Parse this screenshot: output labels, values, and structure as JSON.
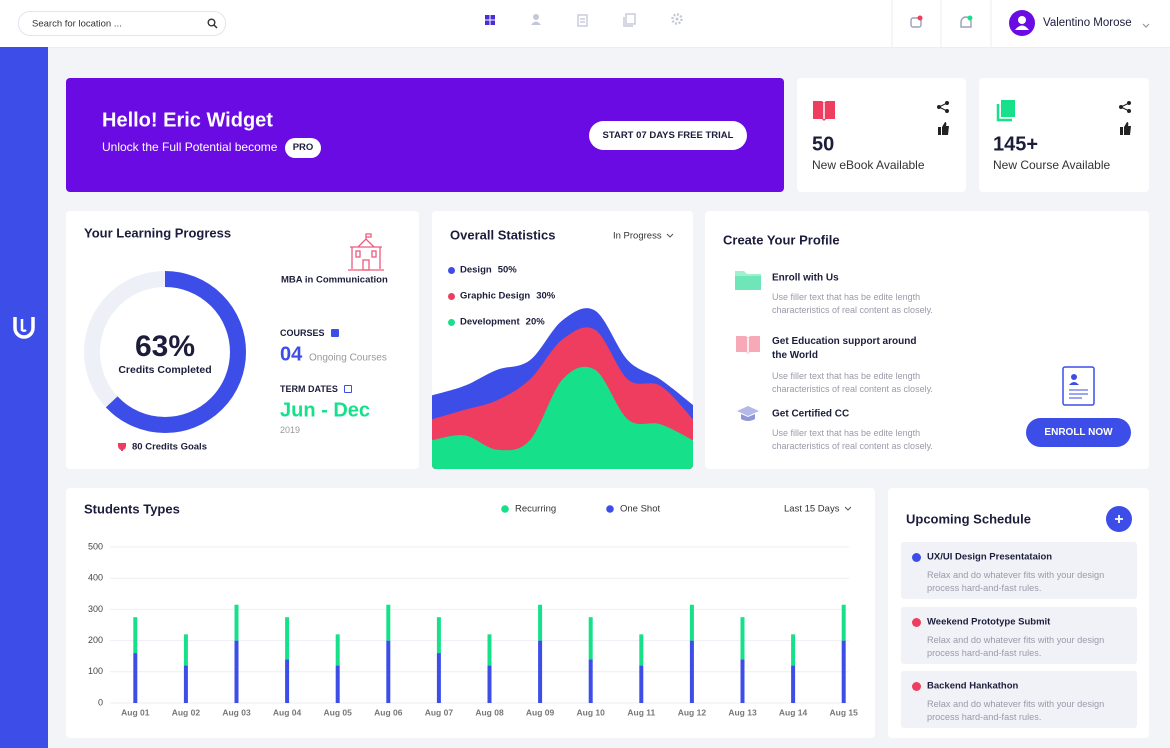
{
  "topbar": {
    "search_placeholder": "Search for location ...",
    "user_name": "Valentino Morose"
  },
  "banner": {
    "title": "Hello! Eric Widget",
    "subtitle": "Unlock the Full Potential become",
    "badge": "PRO",
    "button": "START 07 DAYS FREE TRIAL"
  },
  "stat_cards": [
    {
      "value": "50",
      "label": "New eBook Available"
    },
    {
      "value": "145+",
      "label": "New Course Available"
    }
  ],
  "learning_progress": {
    "title": "Your Learning Progress",
    "program": "MBA in Communication",
    "courses_heading": "COURSES",
    "courses_count": "04",
    "courses_caption": "Ongoing Courses",
    "term_heading": "TERM DATES",
    "term": "Jun - Dec",
    "year": "2019",
    "goal": "80 Credits Goals"
  },
  "profile": {
    "title": "Create Your Profile",
    "items": [
      {
        "title": "Enroll with Us",
        "description": "Use filler text that has be edite length characteristics of real content as closely."
      },
      {
        "title": "Get Education support around the World",
        "description": "Use filler text that has be edite length characteristics of real content as closely."
      },
      {
        "title": "Get Certified CC",
        "description": "Use filler text that has be edite length characteristics of real content as closely."
      }
    ],
    "button": "ENROLL NOW"
  },
  "schedule": {
    "title": "Upcoming Schedule",
    "items": [
      {
        "title": "UX/UI Design Presentataion",
        "description": "Relax and do whatever fits with your design process hard-and-fast rules.",
        "color": "#3d4ee8"
      },
      {
        "title": "Weekend Prototype Submit",
        "description": "Relax and do whatever fits with your design process hard-and-fast rules.",
        "color": "#ee3d5f"
      },
      {
        "title": "Backend Hankathon",
        "description": "Relax and do whatever fits with your design process hard-and-fast rules.",
        "color": "#ee3d5f"
      }
    ]
  },
  "chart_data": [
    {
      "type": "donut",
      "value": 63,
      "value_label": "63%",
      "caption": "Credits Completed",
      "range": [
        0,
        100
      ],
      "color": "#3d4ee8",
      "track_color": "#eef0f7"
    },
    {
      "type": "area",
      "title": "Overall Statistics",
      "filter": "In Progress",
      "categories": [
        null,
        null,
        null,
        null,
        null,
        null,
        null,
        null,
        null
      ],
      "ylim": [
        0,
        100
      ],
      "series": [
        {
          "name": "Design",
          "share": 50,
          "share_label": "50%",
          "color": "#3d4ee8",
          "values": [
            46,
            52,
            62,
            68,
            93,
            99,
            68,
            56,
            40
          ]
        },
        {
          "name": "Graphic Design",
          "share": 30,
          "share_label": "30%",
          "color": "#ee3d5f",
          "values": [
            31,
            37,
            43,
            56,
            81,
            87,
            56,
            52,
            31
          ]
        },
        {
          "name": "Development",
          "share": 20,
          "share_label": "20%",
          "color": "#17e08b",
          "values": [
            18,
            21,
            12,
            18,
            56,
            62,
            31,
            28,
            18
          ]
        }
      ]
    },
    {
      "type": "bar",
      "stacked": true,
      "title": "Students Types",
      "period": "Last 15 Days",
      "categories": [
        "Aug 01",
        "Aug 02",
        "Aug 03",
        "Aug 04",
        "Aug 05",
        "Aug 06",
        "Aug 07",
        "Aug 08",
        "Aug 09",
        "Aug 10",
        "Aug 11",
        "Aug 12",
        "Aug 13",
        "Aug 14",
        "Aug 15"
      ],
      "series": [
        {
          "name": "Recurring",
          "color": "#17e08b",
          "values": [
            115,
            100,
            115,
            135,
            100,
            115,
            115,
            100,
            115,
            135,
            100,
            115,
            135,
            100,
            115
          ]
        },
        {
          "name": "One Shot",
          "color": "#3d4ee8",
          "values": [
            160,
            120,
            200,
            140,
            120,
            200,
            160,
            120,
            200,
            140,
            120,
            200,
            140,
            120,
            200
          ]
        }
      ],
      "ylim": [
        0,
        500
      ],
      "yticks": [
        0,
        100,
        200,
        300,
        400,
        500
      ],
      "grid": true
    }
  ]
}
